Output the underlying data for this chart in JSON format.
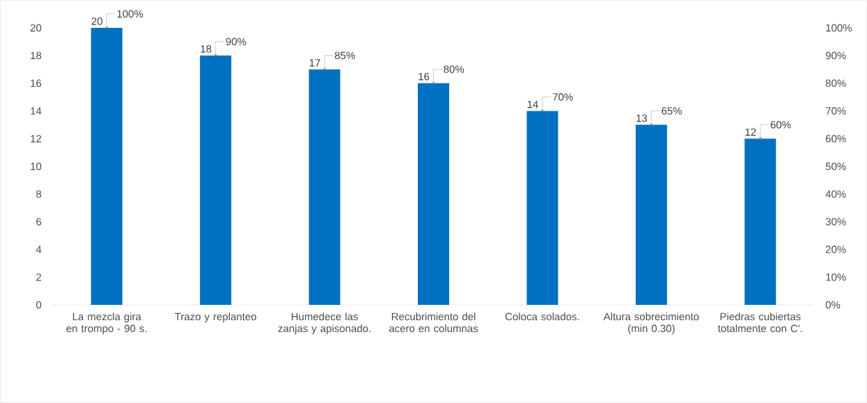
{
  "chart_data": {
    "type": "bar",
    "categories": [
      "La mezcla gira en trompo - 90 s.",
      "Trazo y replanteo",
      "Humedece las zanjas y apisonado.",
      "Recubrimiento del acero en columnas",
      "Coloca solados.",
      "Altura sobrecimiento (min 0.30)",
      "Piedras cubiertas totalmente con C'."
    ],
    "series": [
      {
        "color": "#0070c0",
        "values": [
          20,
          18,
          17,
          16,
          14,
          13,
          12
        ]
      },
      {
        "type": "scatter",
        "axis": "y2",
        "marker": "circle",
        "color": "#7f7f7f",
        "values": [
          100,
          90,
          85,
          80,
          70,
          65,
          60
        ],
        "value_labels": [
          "100%",
          "90%",
          "85%",
          "80%",
          "70%",
          "65%",
          "60%"
        ]
      }
    ],
    "data_labels": true,
    "ylim": [
      0,
      20
    ],
    "yticks": [
      0,
      2,
      4,
      6,
      8,
      10,
      12,
      14,
      16,
      18,
      20
    ],
    "y2lim": [
      0,
      100
    ],
    "y2ticks": [
      {
        "value": 0,
        "label": "0%"
      },
      {
        "value": 10,
        "label": "10%"
      },
      {
        "value": 20,
        "label": "20%"
      },
      {
        "value": 30,
        "label": "30%"
      },
      {
        "value": 40,
        "label": "40%"
      },
      {
        "value": 50,
        "label": "50%"
      },
      {
        "value": 60,
        "label": "60%"
      },
      {
        "value": 70,
        "label": "70%"
      },
      {
        "value": 80,
        "label": "80%"
      },
      {
        "value": 90,
        "label": "90%"
      },
      {
        "value": 100,
        "label": "100%"
      }
    ]
  }
}
